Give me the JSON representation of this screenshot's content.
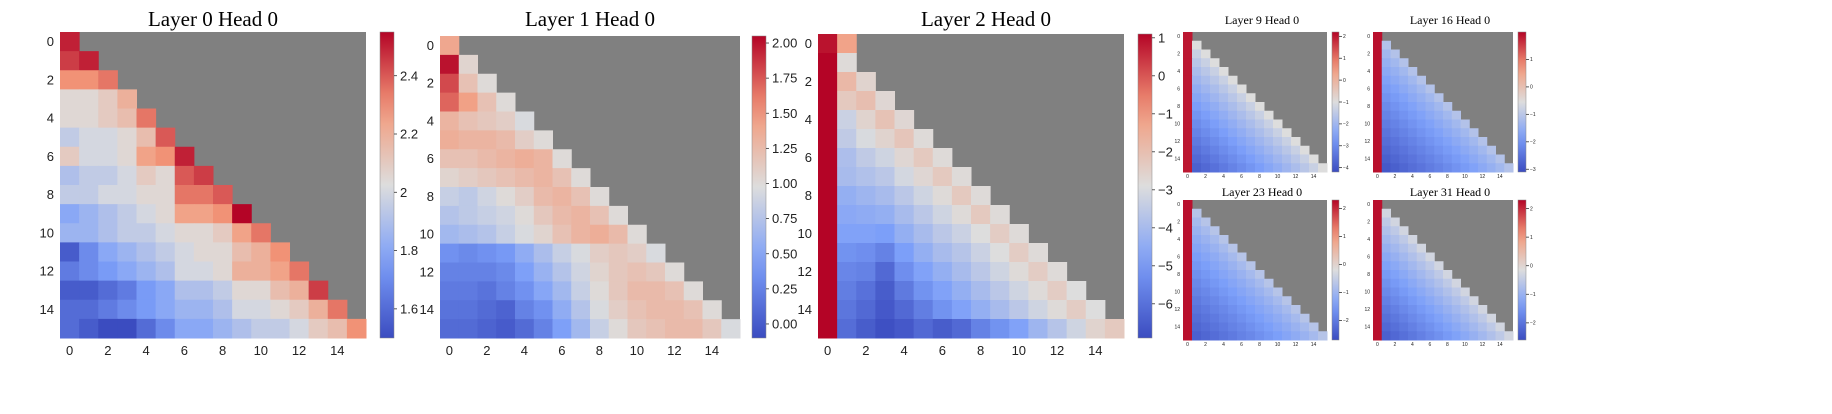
{
  "chart_data": [
    {
      "type": "heatmap",
      "title": "Layer 0 Head 0",
      "n": 16,
      "colorbar_ticks": [
        1.6,
        1.8,
        2.0,
        2.2,
        2.4
      ],
      "clim": [
        1.5,
        2.55
      ],
      "matrix": [
        [
          2.5
        ],
        [
          2.45,
          2.5
        ],
        [
          2.3,
          2.3,
          2.35
        ],
        [
          2.05,
          2.05,
          2.1,
          2.2
        ],
        [
          2.05,
          2.05,
          2.1,
          2.15,
          2.35
        ],
        [
          1.95,
          2.0,
          2.0,
          2.05,
          2.15,
          2.4
        ],
        [
          2.1,
          2.0,
          2.0,
          2.05,
          2.25,
          2.3,
          2.5
        ],
        [
          1.9,
          1.95,
          1.95,
          2.0,
          2.1,
          2.05,
          2.4,
          2.45
        ],
        [
          1.95,
          1.95,
          2.0,
          2.0,
          2.05,
          2.05,
          2.35,
          2.35,
          2.4
        ],
        [
          1.8,
          1.85,
          1.9,
          1.95,
          2.0,
          2.05,
          2.25,
          2.25,
          2.3,
          2.55
        ],
        [
          1.85,
          1.85,
          1.9,
          1.95,
          1.95,
          2.0,
          2.05,
          2.05,
          2.1,
          2.25,
          2.35
        ],
        [
          1.55,
          1.7,
          1.8,
          1.85,
          1.9,
          1.95,
          2.0,
          2.05,
          2.05,
          2.15,
          2.2,
          2.3
        ],
        [
          1.65,
          1.7,
          1.75,
          1.8,
          1.85,
          1.9,
          2.0,
          2.0,
          2.05,
          2.2,
          2.2,
          2.25,
          2.35
        ],
        [
          1.55,
          1.55,
          1.6,
          1.65,
          1.75,
          1.8,
          1.9,
          1.9,
          1.95,
          2.05,
          2.05,
          2.15,
          2.2,
          2.45
        ],
        [
          1.6,
          1.6,
          1.65,
          1.7,
          1.75,
          1.8,
          1.85,
          1.85,
          1.9,
          2.0,
          2.0,
          2.05,
          2.1,
          2.2,
          2.35
        ],
        [
          1.6,
          1.55,
          1.5,
          1.5,
          1.6,
          1.7,
          1.8,
          1.8,
          1.85,
          1.9,
          1.95,
          1.95,
          2.0,
          2.1,
          2.15,
          2.3
        ]
      ]
    },
    {
      "type": "heatmap",
      "title": "Layer 1 Head 0",
      "n": 16,
      "colorbar_ticks": [
        "0.00",
        "0.25",
        "0.50",
        "0.75",
        "1.00",
        "1.25",
        "1.50",
        "1.75",
        "2.00"
      ],
      "clim": [
        -0.1,
        2.05
      ],
      "matrix": [
        [
          1.4
        ],
        [
          2.0,
          1.05
        ],
        [
          1.8,
          1.2,
          1.0
        ],
        [
          1.7,
          1.45,
          1.2,
          1.0
        ],
        [
          1.3,
          1.2,
          1.15,
          1.1,
          0.95
        ],
        [
          1.35,
          1.3,
          1.3,
          1.25,
          1.1,
          1.0
        ],
        [
          1.2,
          1.2,
          1.25,
          1.3,
          1.35,
          1.3,
          1.0
        ],
        [
          1.05,
          1.1,
          1.15,
          1.2,
          1.25,
          1.3,
          1.2,
          1.0
        ],
        [
          0.85,
          0.8,
          0.9,
          1.0,
          1.1,
          1.25,
          1.3,
          1.2,
          1.0
        ],
        [
          0.75,
          0.8,
          0.85,
          0.9,
          1.0,
          1.15,
          1.25,
          1.3,
          1.2,
          1.0
        ],
        [
          0.65,
          0.7,
          0.75,
          0.85,
          0.95,
          1.05,
          1.2,
          1.3,
          1.35,
          1.25,
          1.0
        ],
        [
          0.35,
          0.3,
          0.35,
          0.4,
          0.55,
          0.7,
          0.85,
          0.95,
          1.1,
          1.15,
          1.1,
          0.95
        ],
        [
          0.25,
          0.25,
          0.25,
          0.3,
          0.45,
          0.6,
          0.75,
          0.9,
          1.05,
          1.15,
          1.2,
          1.15,
          1.0
        ],
        [
          0.2,
          0.2,
          0.15,
          0.25,
          0.35,
          0.5,
          0.65,
          0.85,
          1.0,
          1.15,
          1.25,
          1.25,
          1.2,
          1.0
        ],
        [
          0.15,
          0.15,
          0.1,
          0.05,
          0.25,
          0.35,
          0.55,
          0.75,
          0.95,
          1.1,
          1.2,
          1.25,
          1.25,
          1.2,
          1.0
        ],
        [
          0.1,
          0.1,
          0.05,
          0.0,
          0.1,
          0.25,
          0.45,
          0.65,
          0.85,
          1.0,
          1.15,
          1.2,
          1.25,
          1.25,
          1.15,
          0.95
        ]
      ]
    },
    {
      "type": "heatmap",
      "title": "Layer 2 Head 0",
      "n": 16,
      "colorbar_ticks": [
        -6,
        -5,
        -4,
        -3,
        -2,
        -1,
        0,
        1
      ],
      "clim": [
        -6.9,
        1.1
      ],
      "matrix": [
        [
          0.9,
          -1.2
        ],
        [
          1.1,
          -2.8
        ],
        [
          1.1,
          -1.8,
          -2.6
        ],
        [
          1.1,
          -2.3,
          -2.0,
          -2.7
        ],
        [
          1.1,
          -3.3,
          -2.6,
          -2.1,
          -2.7
        ],
        [
          1.1,
          -3.5,
          -3.0,
          -2.6,
          -2.2,
          -2.8
        ],
        [
          1.1,
          -3.9,
          -3.5,
          -3.2,
          -2.7,
          -2.3,
          -2.8
        ],
        [
          1.1,
          -4.0,
          -3.8,
          -3.6,
          -3.1,
          -2.7,
          -2.3,
          -2.8
        ],
        [
          1.1,
          -4.4,
          -4.2,
          -4.0,
          -3.6,
          -3.2,
          -2.8,
          -2.3,
          -2.8
        ],
        [
          1.1,
          -4.6,
          -4.5,
          -4.4,
          -4.0,
          -3.6,
          -3.2,
          -2.8,
          -2.3,
          -2.8
        ],
        [
          1.1,
          -4.8,
          -4.8,
          -4.9,
          -4.4,
          -4.0,
          -3.6,
          -3.3,
          -2.9,
          -2.4,
          -2.8
        ],
        [
          1.1,
          -5.2,
          -5.3,
          -5.6,
          -4.9,
          -4.4,
          -4.0,
          -3.7,
          -3.3,
          -2.9,
          -2.4,
          -2.8
        ],
        [
          1.1,
          -5.5,
          -5.6,
          -6.2,
          -5.3,
          -4.8,
          -4.4,
          -4.0,
          -3.6,
          -3.2,
          -2.8,
          -2.4,
          -2.8
        ],
        [
          1.1,
          -5.7,
          -6.0,
          -6.5,
          -5.8,
          -5.2,
          -4.8,
          -4.4,
          -4.0,
          -3.6,
          -3.2,
          -2.8,
          -2.4,
          -2.9
        ],
        [
          1.1,
          -5.9,
          -6.2,
          -6.6,
          -6.2,
          -5.7,
          -5.2,
          -4.8,
          -4.4,
          -4.0,
          -3.6,
          -3.2,
          -2.8,
          -2.4,
          -2.9
        ],
        [
          1.1,
          -6.1,
          -6.5,
          -6.8,
          -6.6,
          -6.2,
          -6.5,
          -6.2,
          -5.6,
          -5.2,
          -4.8,
          -4.2,
          -3.7,
          -3.2,
          -2.6,
          -2.3
        ]
      ]
    },
    {
      "type": "heatmap",
      "title": "Layer 9 Head 0",
      "n": 16,
      "colorbar_ticks": [
        -4,
        -3,
        -2,
        -1,
        0,
        1,
        2
      ],
      "clim": [
        -4.2,
        2.2
      ],
      "gen": {
        "first": 2.0,
        "second": 0.8,
        "diag": -1.0,
        "deep": -3.8
      }
    },
    {
      "type": "heatmap",
      "title": "Layer 16 Head 0",
      "n": 16,
      "colorbar_ticks": [
        -3,
        -2,
        -1,
        0,
        1
      ],
      "clim": [
        -3.1,
        2.0
      ],
      "gen": {
        "first": 1.9,
        "second": 0.9,
        "diag": -1.1,
        "deep": -2.9
      }
    },
    {
      "type": "heatmap",
      "title": "Layer 23 Head 0",
      "n": 16,
      "colorbar_ticks": [
        -2,
        -1,
        0,
        1,
        2
      ],
      "clim": [
        -2.7,
        2.3
      ],
      "gen": {
        "first": 2.2,
        "second": 0.6,
        "diag": -0.7,
        "deep": -2.4
      }
    },
    {
      "type": "heatmap",
      "title": "Layer 31 Head 0",
      "n": 16,
      "colorbar_ticks": [
        -2,
        -1,
        0,
        1,
        2
      ],
      "clim": [
        -2.6,
        2.3
      ],
      "gen": {
        "first": 2.2,
        "second": 0.4,
        "diag": -0.3,
        "deep": -2.3
      }
    }
  ]
}
